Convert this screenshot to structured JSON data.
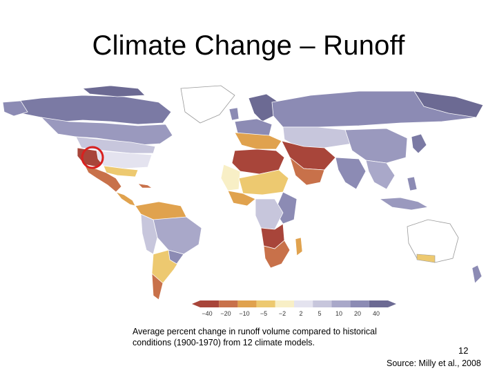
{
  "slide": {
    "title": "Climate Change – Runoff",
    "caption": "Average percent change in runoff volume compared to historical conditions (1900-1970) from 12 climate models.",
    "slide_number": "12",
    "source": "Source: Milly et al., 2008"
  },
  "legend": {
    "ticks": [
      "−40",
      "−20",
      "−10",
      "−5",
      "−2",
      "2",
      "5",
      "10",
      "20",
      "40"
    ],
    "colors": {
      "minus_40": "#a8453a",
      "minus_20": "#c8714a",
      "minus_10": "#e0a24e",
      "minus_5": "#edc970",
      "minus_2": "#f8efc6",
      "plus_2": "#e4e3ef",
      "plus_5": "#c7c6dc",
      "plus_10": "#a9a8c9",
      "plus_20": "#8c8bb4",
      "plus_40": "#6c6a93"
    }
  },
  "highlight": {
    "region": "southwestern United States",
    "color": "#d9201e"
  }
}
